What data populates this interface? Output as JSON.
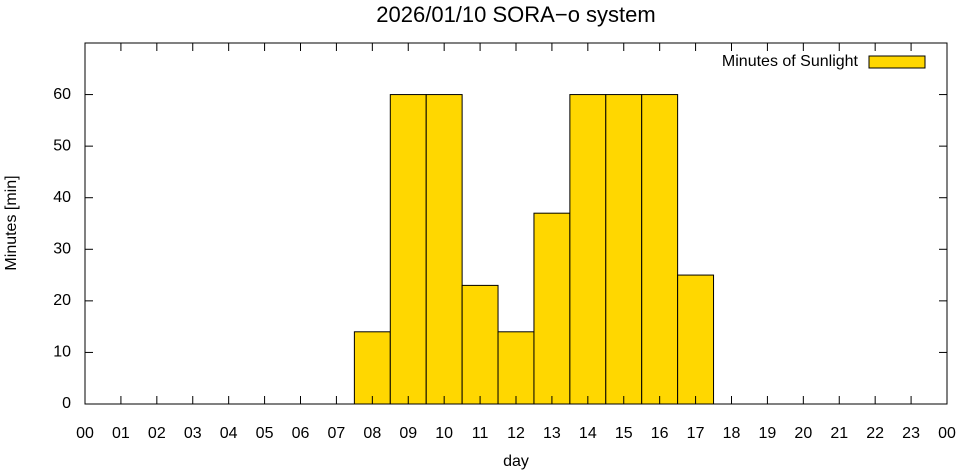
{
  "chart_data": {
    "type": "bar",
    "title": "2026/01/10 SORA−o system",
    "x_label": "day",
    "y_label": "Minutes [min]",
    "x": [
      0,
      1,
      2,
      3,
      4,
      5,
      6,
      7,
      8,
      9,
      10,
      11,
      12,
      13,
      14,
      15,
      16,
      17,
      18,
      19,
      20,
      21,
      22,
      23
    ],
    "series": [
      {
        "name": "Minutes of Sunlight",
        "color": "#ffd700",
        "values": [
          0,
          0,
          0,
          0,
          0,
          0,
          0,
          0,
          14,
          60,
          60,
          23,
          14,
          37,
          60,
          60,
          60,
          25,
          0,
          0,
          0,
          0,
          0,
          0
        ]
      }
    ],
    "xlim": [
      0,
      24
    ],
    "xticks": [
      {
        "value": 0,
        "label": "00"
      },
      {
        "value": 1,
        "label": "01"
      },
      {
        "value": 2,
        "label": "02"
      },
      {
        "value": 3,
        "label": "03"
      },
      {
        "value": 4,
        "label": "04"
      },
      {
        "value": 5,
        "label": "05"
      },
      {
        "value": 6,
        "label": "06"
      },
      {
        "value": 7,
        "label": "07"
      },
      {
        "value": 8,
        "label": "08"
      },
      {
        "value": 9,
        "label": "09"
      },
      {
        "value": 10,
        "label": "10"
      },
      {
        "value": 11,
        "label": "11"
      },
      {
        "value": 12,
        "label": "12"
      },
      {
        "value": 13,
        "label": "13"
      },
      {
        "value": 14,
        "label": "14"
      },
      {
        "value": 15,
        "label": "15"
      },
      {
        "value": 16,
        "label": "16"
      },
      {
        "value": 17,
        "label": "17"
      },
      {
        "value": 18,
        "label": "18"
      },
      {
        "value": 19,
        "label": "19"
      },
      {
        "value": 20,
        "label": "20"
      },
      {
        "value": 21,
        "label": "21"
      },
      {
        "value": 22,
        "label": "22"
      },
      {
        "value": 23,
        "label": "23"
      },
      {
        "value": 24,
        "label": "00"
      }
    ],
    "ylim": [
      0,
      70
    ],
    "yticks": [
      0,
      10,
      20,
      30,
      40,
      50,
      60
    ],
    "legend": "top-right",
    "grid": false
  }
}
